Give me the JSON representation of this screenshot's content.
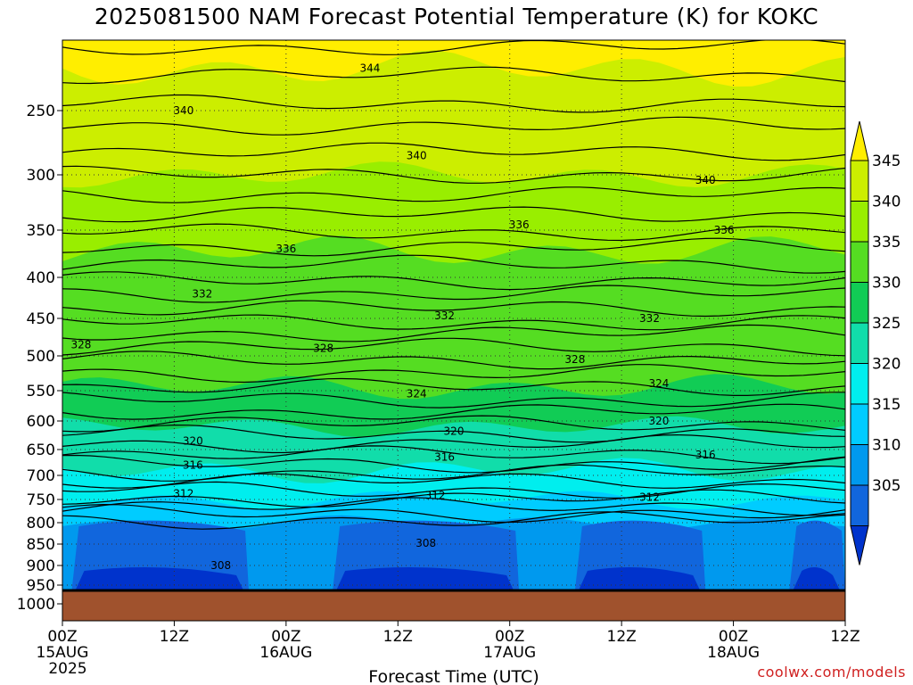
{
  "title": "2025081500 NAM Forecast Potential Temperature (K) for KOKC",
  "credit": "coolwx.com/models",
  "chart_data": {
    "type": "heatmap",
    "title": "2025081500 NAM Forecast Potential Temperature (K) for KOKC",
    "xlabel": "Forecast Time (UTC)",
    "ylabel": "",
    "x_hours_range": [
      0,
      84
    ],
    "y_pressure_range_hPa": [
      1000,
      200
    ],
    "x_ticks": [
      {
        "hour": 0,
        "label": "00Z",
        "sub": "15AUG",
        "sub2": "2025"
      },
      {
        "hour": 12,
        "label": "12Z",
        "sub": "",
        "sub2": ""
      },
      {
        "hour": 24,
        "label": "00Z",
        "sub": "16AUG",
        "sub2": ""
      },
      {
        "hour": 36,
        "label": "12Z",
        "sub": "",
        "sub2": ""
      },
      {
        "hour": 48,
        "label": "00Z",
        "sub": "17AUG",
        "sub2": ""
      },
      {
        "hour": 60,
        "label": "12Z",
        "sub": "",
        "sub2": ""
      },
      {
        "hour": 72,
        "label": "00Z",
        "sub": "18AUG",
        "sub2": ""
      },
      {
        "hour": 84,
        "label": "12Z",
        "sub": "",
        "sub2": ""
      }
    ],
    "y_ticks": [
      250,
      300,
      350,
      400,
      450,
      500,
      550,
      600,
      650,
      700,
      750,
      800,
      850,
      900,
      950,
      1000
    ],
    "colorbar": {
      "labels": [
        345,
        340,
        335,
        330,
        325,
        320,
        315,
        310,
        305
      ],
      "colors": [
        "#ffee00",
        "#ccee00",
        "#99ee00",
        "#55dd22",
        "#11cc55",
        "#11ddaa",
        "#00eeee",
        "#00ccff",
        "#0099ee",
        "#1166dd",
        "#0033cc"
      ]
    },
    "contour_labels": [
      {
        "value": "344",
        "hour": 33,
        "p": 220
      },
      {
        "value": "340",
        "hour": 13,
        "p": 250
      },
      {
        "value": "340",
        "hour": 38,
        "p": 285
      },
      {
        "value": "340",
        "hour": 69,
        "p": 305
      },
      {
        "value": "336",
        "hour": 49,
        "p": 345
      },
      {
        "value": "336",
        "hour": 24,
        "p": 370
      },
      {
        "value": "336",
        "hour": 71,
        "p": 350
      },
      {
        "value": "332",
        "hour": 15,
        "p": 420
      },
      {
        "value": "332",
        "hour": 41,
        "p": 447
      },
      {
        "value": "332",
        "hour": 63,
        "p": 450
      },
      {
        "value": "328",
        "hour": 2,
        "p": 485
      },
      {
        "value": "328",
        "hour": 28,
        "p": 490
      },
      {
        "value": "328",
        "hour": 55,
        "p": 505
      },
      {
        "value": "324",
        "hour": 38,
        "p": 555
      },
      {
        "value": "324",
        "hour": 64,
        "p": 540
      },
      {
        "value": "320",
        "hour": 42,
        "p": 618
      },
      {
        "value": "320",
        "hour": 64,
        "p": 600
      },
      {
        "value": "320",
        "hour": 14,
        "p": 635
      },
      {
        "value": "316",
        "hour": 14,
        "p": 680
      },
      {
        "value": "316",
        "hour": 41,
        "p": 665
      },
      {
        "value": "316",
        "hour": 69,
        "p": 660
      },
      {
        "value": "312",
        "hour": 13,
        "p": 738
      },
      {
        "value": "312",
        "hour": 40,
        "p": 742
      },
      {
        "value": "312",
        "hour": 63,
        "p": 745
      },
      {
        "value": "308",
        "hour": 39,
        "p": 848
      },
      {
        "value": "308",
        "hour": 17,
        "p": 900
      }
    ]
  },
  "labels": {
    "xlabel": "Forecast Time (UTC)"
  }
}
